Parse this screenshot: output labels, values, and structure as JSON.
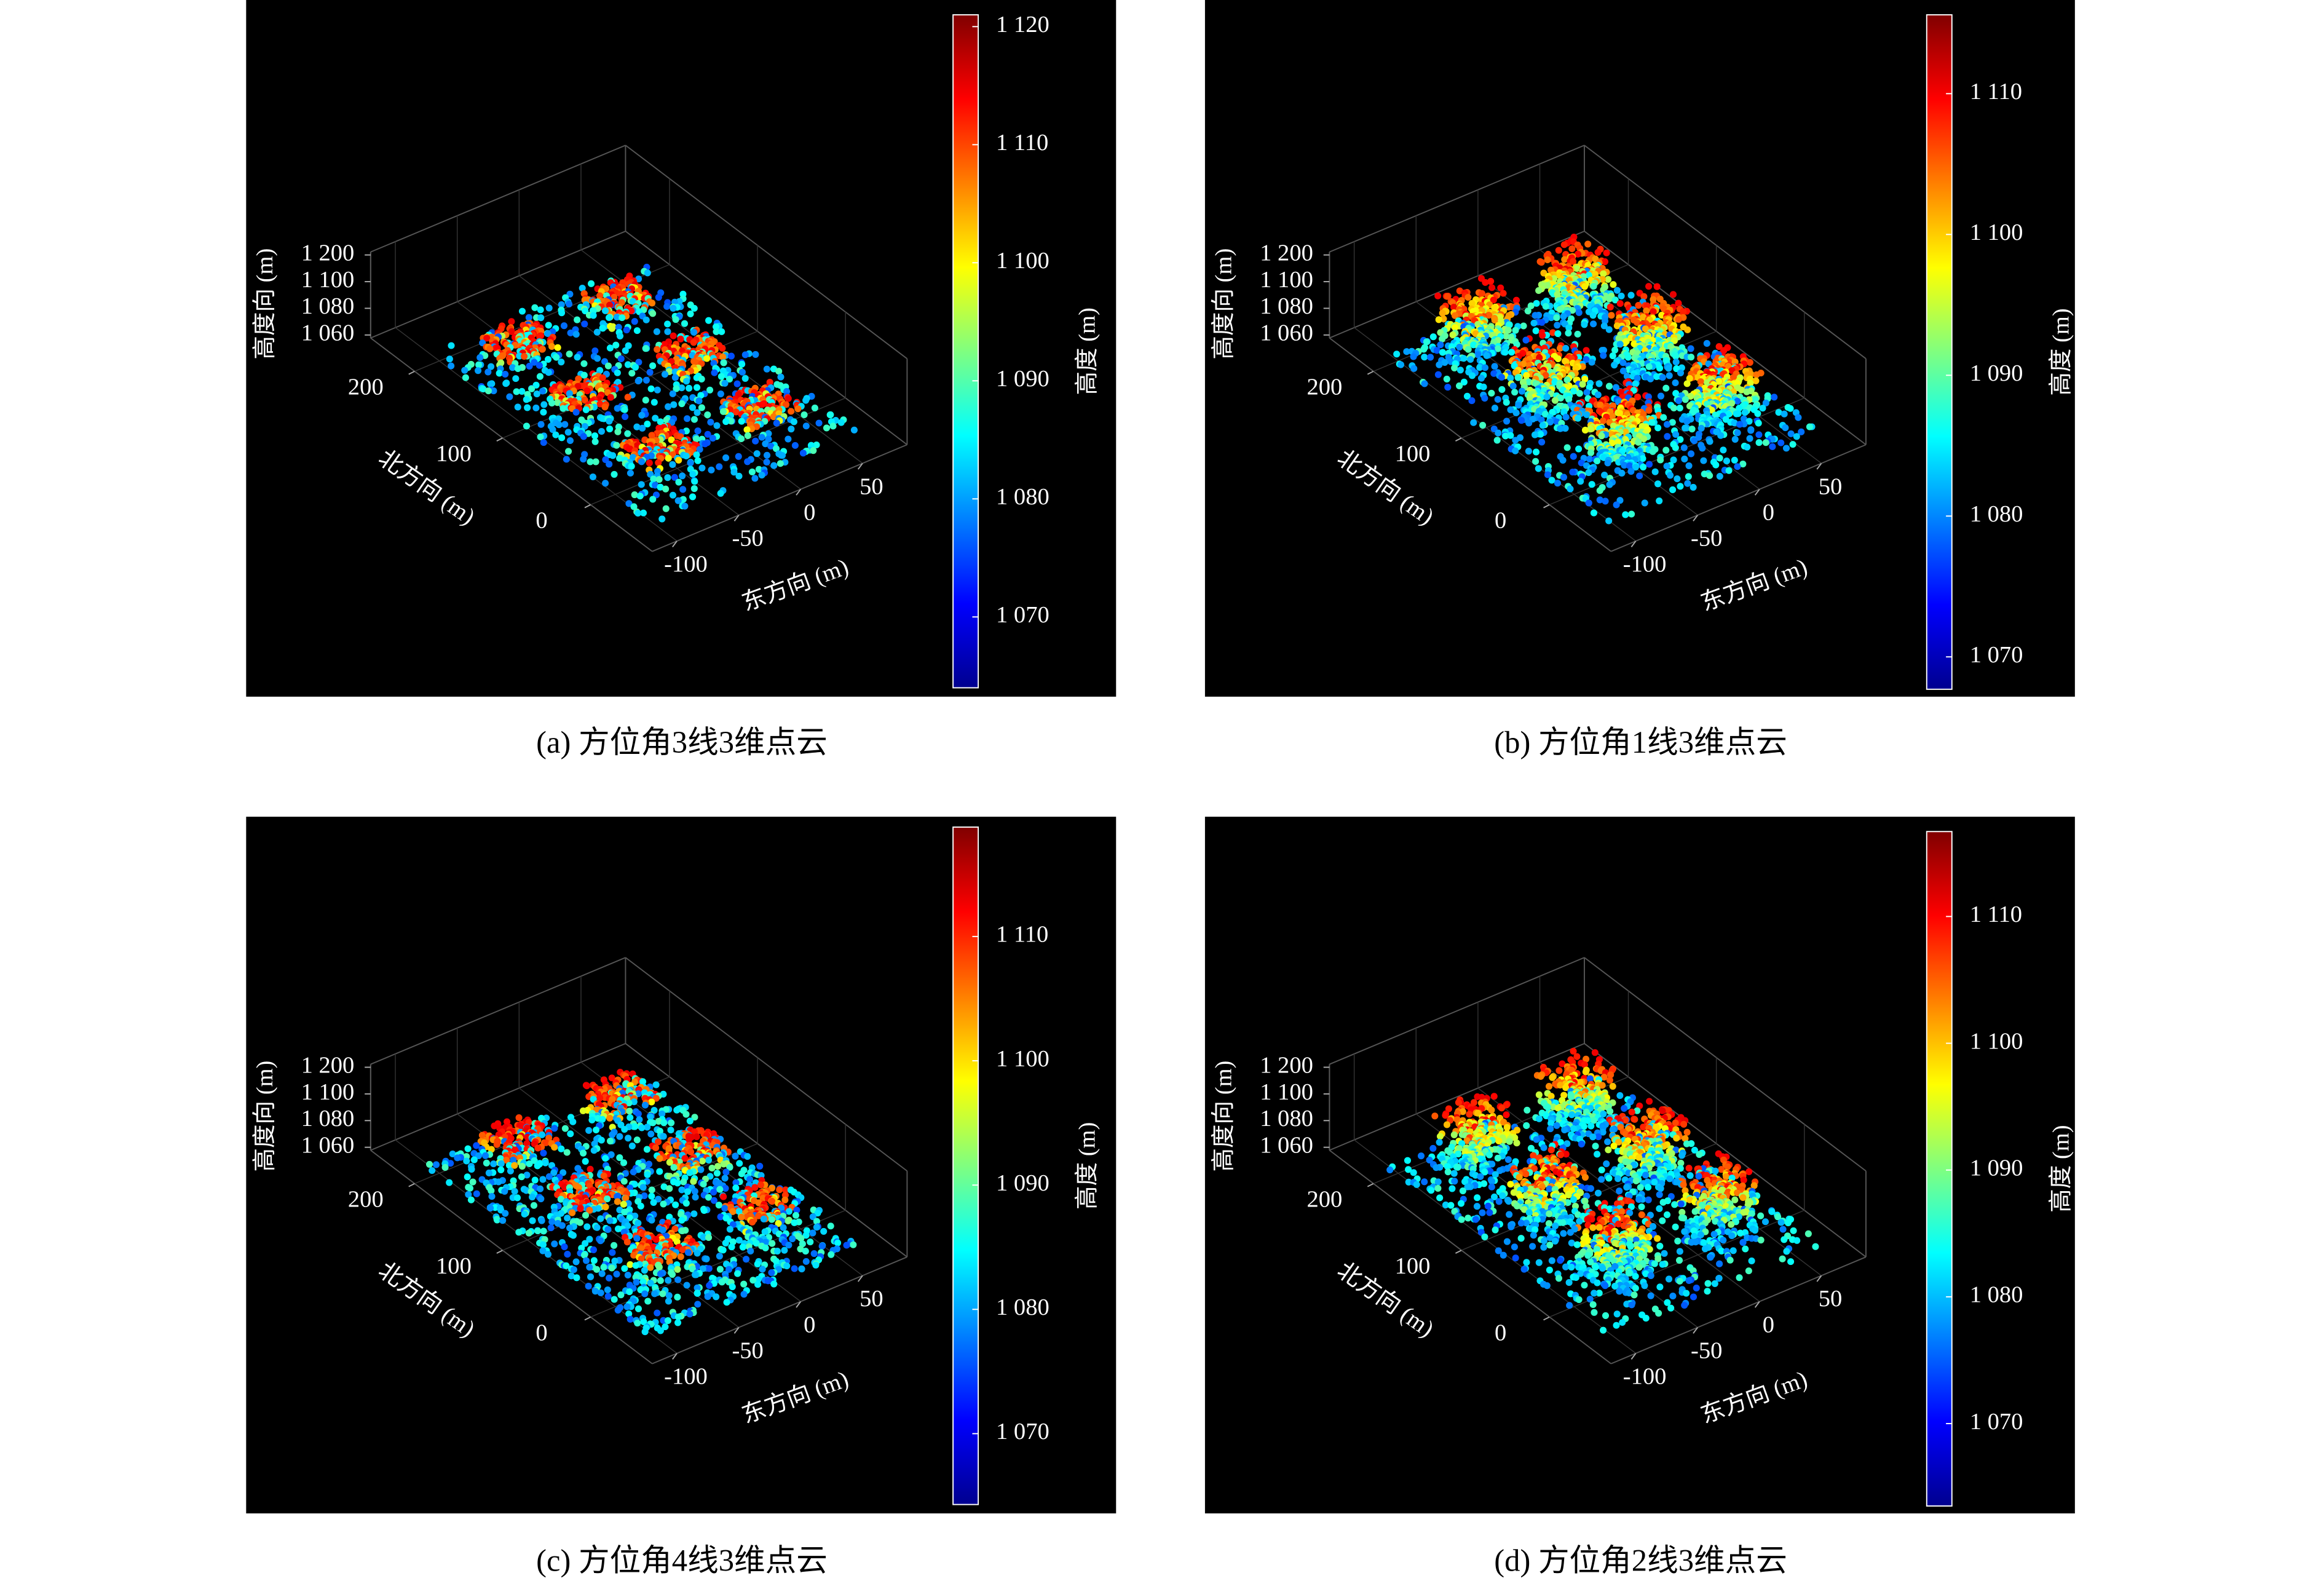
{
  "chart_data": [
    {
      "type": "scatter3d",
      "background": "#000000",
      "caption": "(a) 方位角3线3维点云",
      "xlabel": "东方向 (m)",
      "ylabel": "北方向 (m)",
      "zlabel": "高度向 (m)",
      "xlim": [
        -120,
        86
      ],
      "xticks": [
        -100,
        -50,
        0,
        50
      ],
      "ylim": [
        -70,
        250
      ],
      "yticks": [
        0,
        100,
        200
      ],
      "zticks": [
        {
          "value": 1060,
          "label": "1 060"
        },
        {
          "value": 1080,
          "label": "1 080"
        },
        {
          "value": 1100,
          "label": "1 100"
        },
        {
          "value": 1200,
          "label": "1 200"
        }
      ],
      "colorbar": {
        "label": "高度 (m)",
        "colormap": "jet",
        "clim": [
          1064,
          1121
        ],
        "ticks": [
          {
            "value": 1070,
            "label": "1 070"
          },
          {
            "value": 1080,
            "label": "1 080"
          },
          {
            "value": 1090,
            "label": "1 090"
          },
          {
            "value": 1100,
            "label": "1 100"
          },
          {
            "value": 1110,
            "label": "1 110"
          },
          {
            "value": 1120,
            "label": "1 120"
          }
        ]
      }
    },
    {
      "type": "scatter3d",
      "background": "#000000",
      "caption": "(b) 方位角1线3维点云",
      "xlabel": "东方向 (m)",
      "ylabel": "北方向 (m)",
      "zlabel": "高度向 (m)",
      "xlim": [
        -120,
        86
      ],
      "xticks": [
        -100,
        -50,
        0,
        50
      ],
      "ylim": [
        -70,
        250
      ],
      "yticks": [
        0,
        100,
        200
      ],
      "zticks": [
        {
          "value": 1060,
          "label": "1 060"
        },
        {
          "value": 1080,
          "label": "1 080"
        },
        {
          "value": 1100,
          "label": "1 100"
        },
        {
          "value": 1200,
          "label": "1 200"
        }
      ],
      "colorbar": {
        "label": "高度 (m)",
        "colormap": "jet",
        "clim": [
          1067.7,
          1115.6
        ],
        "ticks": [
          {
            "value": 1070,
            "label": "1 070"
          },
          {
            "value": 1080,
            "label": "1 080"
          },
          {
            "value": 1090,
            "label": "1 090"
          },
          {
            "value": 1100,
            "label": "1 100"
          },
          {
            "value": 1110,
            "label": "1 110"
          }
        ]
      }
    },
    {
      "type": "scatter3d",
      "background": "#000000",
      "caption": "(c) 方位角4线3维点云",
      "xlabel": "东方向 (m)",
      "ylabel": "北方向 (m)",
      "zlabel": "高度向 (m)",
      "xlim": [
        -120,
        86
      ],
      "xticks": [
        -100,
        -50,
        0,
        50
      ],
      "ylim": [
        -70,
        250
      ],
      "yticks": [
        0,
        100,
        200
      ],
      "zticks": [
        {
          "value": 1060,
          "label": "1 060"
        },
        {
          "value": 1080,
          "label": "1 080"
        },
        {
          "value": 1100,
          "label": "1 100"
        },
        {
          "value": 1200,
          "label": "1 200"
        }
      ],
      "colorbar": {
        "label": "高度 (m)",
        "colormap": "jet",
        "clim": [
          1064.3,
          1118.8
        ],
        "ticks": [
          {
            "value": 1070,
            "label": "1 070"
          },
          {
            "value": 1080,
            "label": "1 080"
          },
          {
            "value": 1090,
            "label": "1 090"
          },
          {
            "value": 1100,
            "label": "1 100"
          },
          {
            "value": 1110,
            "label": "1 110"
          }
        ]
      }
    },
    {
      "type": "scatter3d",
      "background": "#000000",
      "caption": "(d) 方位角2线3维点云",
      "xlabel": "东方向 (m)",
      "ylabel": "北方向 (m)",
      "zlabel": "高度向 (m)",
      "xlim": [
        -120,
        86
      ],
      "xticks": [
        -100,
        -50,
        0,
        50
      ],
      "ylim": [
        -70,
        250
      ],
      "yticks": [
        0,
        100,
        200
      ],
      "zticks": [
        {
          "value": 1060,
          "label": "1 060"
        },
        {
          "value": 1080,
          "label": "1 080"
        },
        {
          "value": 1100,
          "label": "1 100"
        },
        {
          "value": 1200,
          "label": "1 200"
        }
      ],
      "colorbar": {
        "label": "高度 (m)",
        "colormap": "jet",
        "clim": [
          1063.5,
          1116.7
        ],
        "ticks": [
          {
            "value": 1070,
            "label": "1 070"
          },
          {
            "value": 1080,
            "label": "1 080"
          },
          {
            "value": 1090,
            "label": "1 090"
          },
          {
            "value": 1100,
            "label": "1 100"
          },
          {
            "value": 1110,
            "label": "1 110"
          }
        ]
      }
    }
  ]
}
